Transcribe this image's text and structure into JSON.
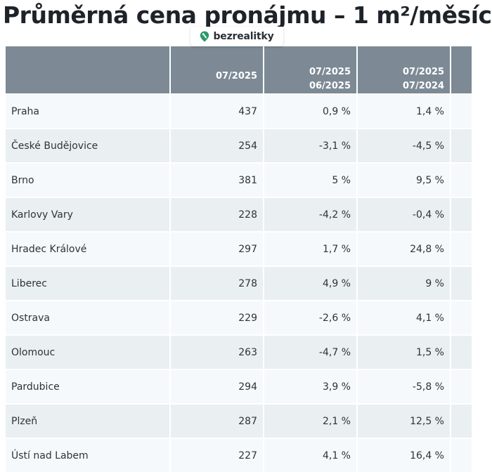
{
  "title": "Průměrná cena pronájmu – 1 m²/měsíc",
  "brand": {
    "name": "bezrealitky",
    "icon": "location-pin-icon",
    "color": "#2b9a6a"
  },
  "table": {
    "headers": [
      {
        "lines": [
          ""
        ]
      },
      {
        "lines": [
          "07/2025"
        ]
      },
      {
        "lines": [
          "07/2025",
          "06/2025"
        ]
      },
      {
        "lines": [
          "07/2025",
          "07/2024"
        ]
      },
      {
        "lines": [
          ""
        ]
      }
    ],
    "rows": [
      {
        "city": "Praha",
        "price": "437",
        "mom": "0,9 %",
        "yoy": "1,4 %"
      },
      {
        "city": "České Budějovice",
        "price": "254",
        "mom": "-3,1 %",
        "yoy": "-4,5 %"
      },
      {
        "city": "Brno",
        "price": "381",
        "mom": "5 %",
        "yoy": "9,5 %"
      },
      {
        "city": "Karlovy Vary",
        "price": "228",
        "mom": "-4,2 %",
        "yoy": "-0,4 %"
      },
      {
        "city": "Hradec Králové",
        "price": "297",
        "mom": "1,7 %",
        "yoy": "24,8 %"
      },
      {
        "city": "Liberec",
        "price": "278",
        "mom": "4,9 %",
        "yoy": "9 %"
      },
      {
        "city": "Ostrava",
        "price": "229",
        "mom": "-2,6 %",
        "yoy": "4,1 %"
      },
      {
        "city": "Olomouc",
        "price": "263",
        "mom": "-4,7 %",
        "yoy": "1,5 %"
      },
      {
        "city": "Pardubice",
        "price": "294",
        "mom": "3,9 %",
        "yoy": "-5,8 %"
      },
      {
        "city": "Plzeň",
        "price": "287",
        "mom": "2,1 %",
        "yoy": "12,5 %"
      },
      {
        "city": "Ústí nad Labem",
        "price": "227",
        "mom": "4,1 %",
        "yoy": "16,4 %"
      }
    ]
  },
  "colors": {
    "header_bg": "#7d8a95",
    "row_light": "#f5f9fb",
    "row_dark": "#eaeff2"
  }
}
